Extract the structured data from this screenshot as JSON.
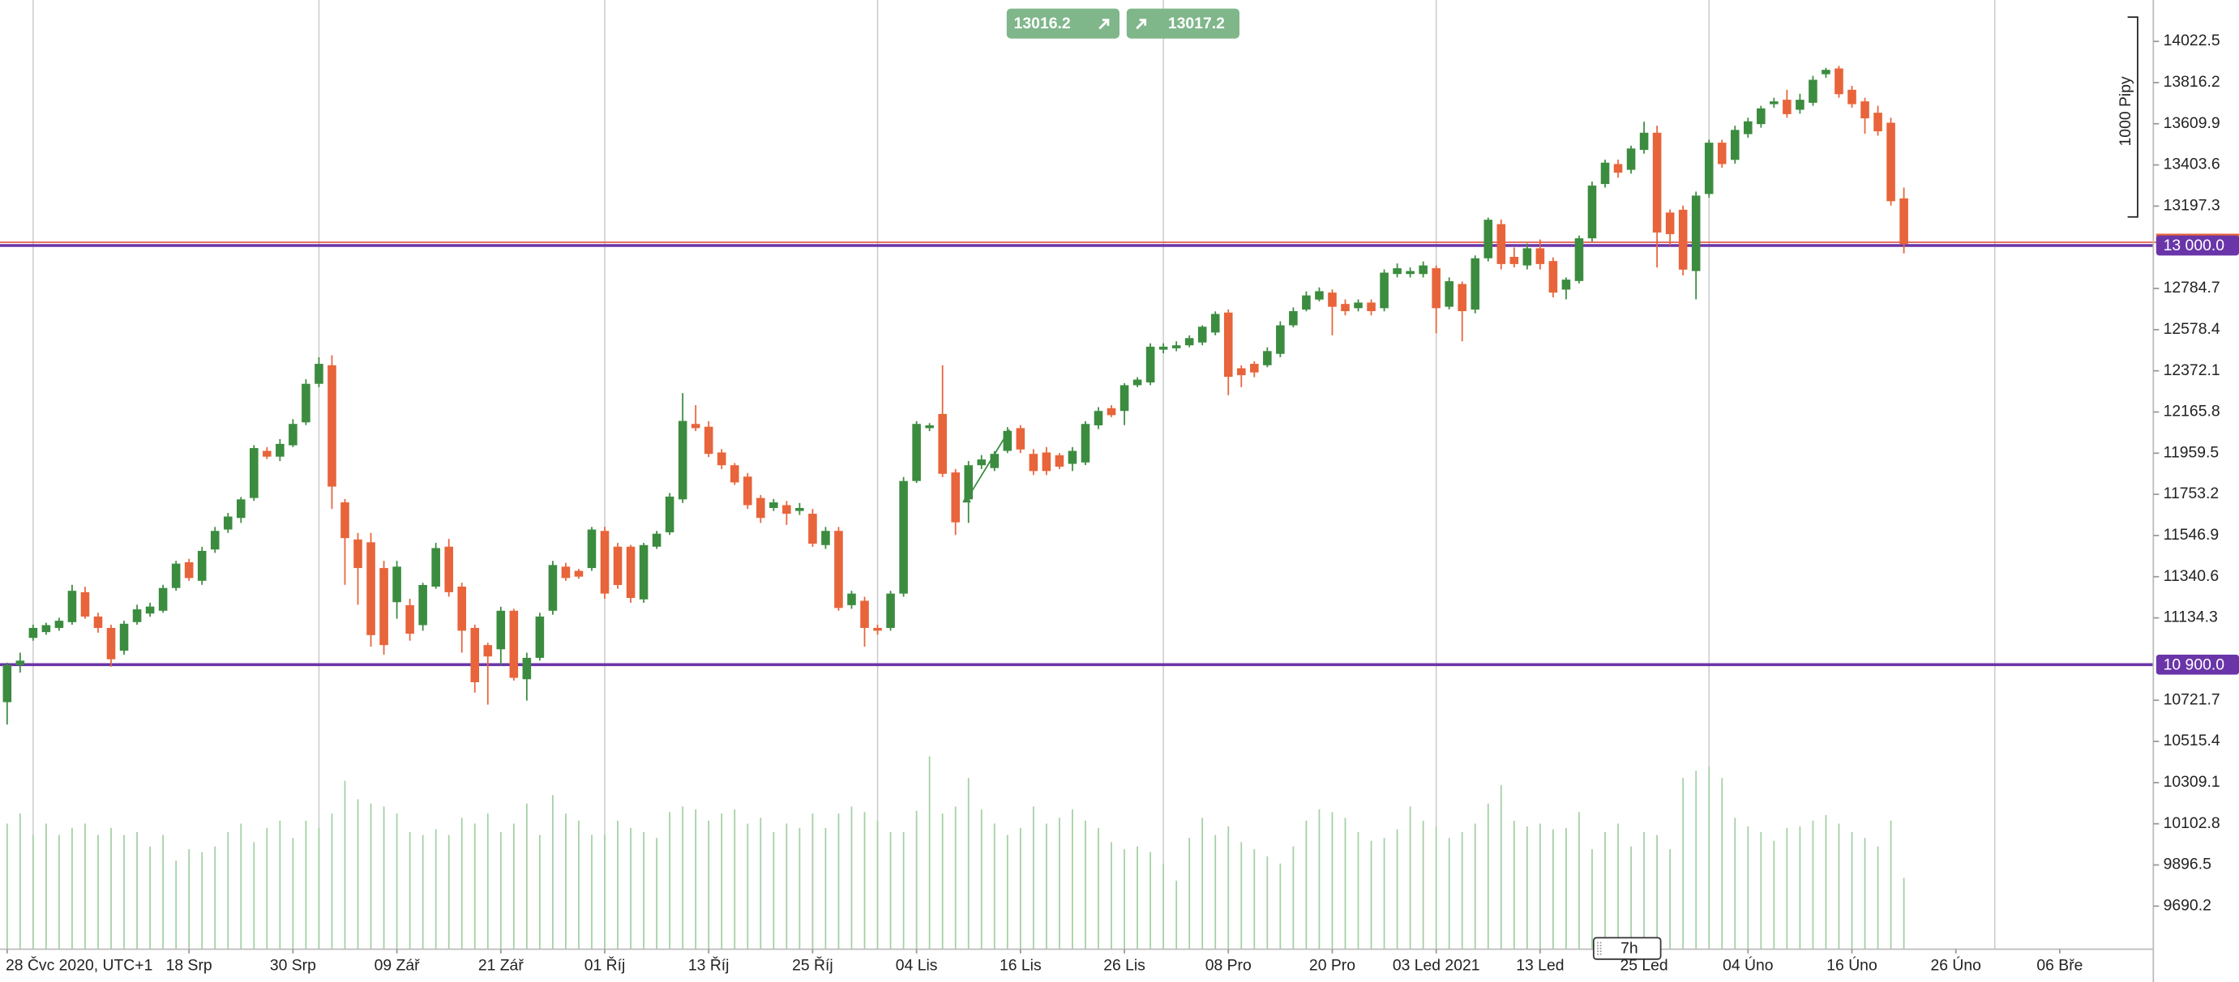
{
  "chart_data": {
    "type": "candlestick",
    "open": [
      10712,
      10898,
      11034,
      11063,
      11084,
      11113,
      11263,
      11141,
      11084,
      10970,
      11113,
      11156,
      11170,
      11284,
      11413,
      11320,
      11477,
      11577,
      11635,
      11735,
      11971,
      11942,
      11999,
      12114,
      12307,
      12400,
      11713,
      11527,
      11513,
      11384,
      11213,
      11198,
      11098,
      11291,
      11491,
      11291,
      11084,
      10998,
      10977,
      11170,
      10827,
      10934,
      11170,
      11391,
      11370,
      11384,
      11570,
      11491,
      11491,
      11227,
      11491,
      11563,
      11728,
      12106,
      12092,
      11963,
      11899,
      11842,
      11735,
      11685,
      11699,
      11670,
      11656,
      11499,
      11570,
      11198,
      11220,
      11084,
      11084,
      11256,
      11820,
      12085,
      12156,
      11863,
      11728,
      11899,
      11885,
      11971,
      12085,
      11956,
      11963,
      11949,
      11906,
      11913,
      12099,
      12185,
      12171,
      12300,
      12314,
      12478,
      12485,
      12500,
      12514,
      12564,
      12664,
      12385,
      12407,
      12400,
      12457,
      12600,
      12679,
      12729,
      12764,
      12707,
      12686,
      12714,
      12686,
      12857,
      12857,
      12857,
      12886,
      12693,
      12807,
      12679,
      12936,
      13107,
      12943,
      12900,
      12986,
      12922,
      12779,
      12822,
      13036,
      13308,
      13408,
      13379,
      13479,
      13565,
      13165,
      13179,
      12872,
      13258,
      13515,
      13429,
      13558,
      13608,
      13708,
      13730,
      13680,
      13715,
      13858,
      13887,
      13780,
      13722,
      13665,
      13615,
      13236
    ],
    "high": [
      10910,
      10960,
      11100,
      11110,
      11135,
      11300,
      11290,
      11160,
      11100,
      11120,
      11200,
      11210,
      11300,
      11420,
      11430,
      11490,
      11590,
      11660,
      11740,
      12000,
      11990,
      12030,
      12130,
      12330,
      12440,
      12450,
      11730,
      11560,
      11560,
      11420,
      11420,
      11230,
      11310,
      11510,
      11530,
      11310,
      11100,
      11010,
      11190,
      11180,
      10960,
      11160,
      11420,
      11410,
      11380,
      11590,
      11590,
      11510,
      11500,
      11510,
      11570,
      11760,
      12260,
      12200,
      12120,
      11980,
      11910,
      11860,
      11750,
      11730,
      11720,
      11710,
      11680,
      11590,
      11590,
      11270,
      11240,
      11100,
      11270,
      11840,
      12120,
      12110,
      12400,
      11880,
      11920,
      11950,
      11970,
      12090,
      12100,
      11980,
      11990,
      11960,
      11990,
      12120,
      12190,
      12200,
      12310,
      12340,
      12510,
      12510,
      12520,
      12550,
      12600,
      12670,
      12680,
      12400,
      12420,
      12490,
      12620,
      12690,
      12770,
      12790,
      12780,
      12730,
      12730,
      12730,
      12880,
      12910,
      12890,
      12920,
      12900,
      12840,
      12820,
      12950,
      13140,
      13130,
      12990,
      13010,
      13030,
      12940,
      12840,
      13050,
      13320,
      13430,
      13430,
      13500,
      13620,
      13600,
      13180,
      13200,
      13270,
      13530,
      13530,
      13600,
      13640,
      13700,
      13740,
      13780,
      13760,
      13850,
      13890,
      13900,
      13800,
      13740,
      13700,
      13640,
      13290
    ],
    "low": [
      10600,
      10860,
      11020,
      11050,
      11070,
      11100,
      11130,
      11060,
      10890,
      10950,
      11100,
      11140,
      11160,
      11270,
      11320,
      11300,
      11460,
      11560,
      11610,
      11720,
      11930,
      11920,
      11990,
      12100,
      12290,
      11680,
      11300,
      11200,
      10990,
      10950,
      11130,
      11020,
      11070,
      11280,
      11240,
      10960,
      10760,
      10700,
      10900,
      10820,
      10720,
      10920,
      11150,
      11320,
      11330,
      11370,
      11230,
      11280,
      11210,
      11210,
      11480,
      11550,
      11710,
      12070,
      11940,
      11880,
      11800,
      11680,
      11610,
      11670,
      11600,
      11650,
      11490,
      11480,
      11170,
      11180,
      10990,
      11050,
      11070,
      11240,
      11810,
      12070,
      11840,
      11550,
      11610,
      11880,
      11870,
      11960,
      11960,
      11850,
      11850,
      11880,
      11870,
      11900,
      12080,
      12140,
      12100,
      12290,
      12300,
      12460,
      12470,
      12490,
      12500,
      12550,
      12250,
      12290,
      12340,
      12390,
      12440,
      12590,
      12670,
      12720,
      12550,
      12650,
      12670,
      12650,
      12670,
      12840,
      12840,
      12840,
      12560,
      12680,
      12520,
      12660,
      12920,
      12880,
      12890,
      12880,
      12880,
      12740,
      12730,
      12810,
      13020,
      13290,
      13340,
      13360,
      13460,
      12890,
      13000,
      12850,
      12730,
      13240,
      13390,
      13410,
      13540,
      13590,
      13690,
      13640,
      13660,
      13700,
      13840,
      13740,
      13690,
      13560,
      13550,
      13200,
      12960
    ],
    "close": [
      10898,
      10920,
      11084,
      11098,
      11120,
      11270,
      11141,
      11084,
      10927,
      11105,
      11177,
      11191,
      11284,
      11406,
      11334,
      11470,
      11570,
      11642,
      11728,
      11985,
      11942,
      12006,
      12106,
      12307,
      12407,
      11792,
      11534,
      11384,
      11048,
      10998,
      11391,
      11055,
      11299,
      11484,
      11263,
      11070,
      10812,
      10941,
      11170,
      10834,
      10934,
      11141,
      11399,
      11334,
      11341,
      11577,
      11256,
      11299,
      11234,
      11499,
      11556,
      11742,
      12121,
      12085,
      11956,
      11899,
      11813,
      11699,
      11635,
      11713,
      11656,
      11685,
      11506,
      11570,
      11184,
      11256,
      11084,
      11070,
      11256,
      11820,
      12106,
      12099,
      11856,
      11613,
      11899,
      11928,
      11956,
      12071,
      11978,
      11870,
      11870,
      11892,
      11971,
      12106,
      12171,
      12150,
      12300,
      12328,
      12493,
      12493,
      12500,
      12536,
      12593,
      12657,
      12342,
      12350,
      12364,
      12471,
      12600,
      12671,
      12750,
      12771,
      12693,
      12671,
      12714,
      12671,
      12864,
      12886,
      12872,
      12900,
      12686,
      12821,
      12671,
      12936,
      13129,
      12907,
      12907,
      12986,
      12907,
      12764,
      12829,
      13036,
      13300,
      13415,
      13365,
      13486,
      13565,
      13065,
      13057,
      12879,
      13250,
      13515,
      13408,
      13579,
      13622,
      13687,
      13722,
      13658,
      13730,
      13830,
      13880,
      13758,
      13708,
      13637,
      13572,
      13222,
      13007
    ],
    "volume": [
      88,
      95,
      80,
      88,
      80,
      85,
      88,
      80,
      85,
      80,
      82,
      72,
      80,
      62,
      70,
      68,
      72,
      82,
      88,
      75,
      85,
      90,
      78,
      90,
      85,
      95,
      118,
      105,
      102,
      100,
      95,
      82,
      80,
      84,
      80,
      92,
      88,
      95,
      82,
      88,
      102,
      80,
      108,
      95,
      90,
      80,
      80,
      90,
      85,
      82,
      78,
      96,
      100,
      98,
      90,
      95,
      98,
      88,
      92,
      82,
      88,
      85,
      95,
      85,
      95,
      100,
      96,
      90,
      82,
      82,
      97,
      135,
      95,
      100,
      120,
      98,
      88,
      80,
      85,
      100,
      88,
      92,
      98,
      90,
      85,
      75,
      70,
      72,
      68,
      60,
      48,
      78,
      92,
      80,
      86,
      75,
      70,
      65,
      60,
      72,
      90,
      98,
      96,
      92,
      82,
      76,
      78,
      84,
      100,
      90,
      86,
      78,
      82,
      88,
      102,
      115,
      90,
      86,
      88,
      84,
      85,
      96,
      70,
      82,
      88,
      72,
      82,
      80,
      70,
      120,
      125,
      128,
      120,
      92,
      86,
      82,
      76,
      85,
      86,
      90,
      94,
      88,
      82,
      78,
      72,
      90,
      50
    ],
    "up_color": "#3b8c3f",
    "down_color": "#e8643a",
    "volume_color": "#a3d0a3",
    "xlim": [
      -0.55,
      165.2
    ],
    "ylim": [
      9474.5,
      14229.9
    ],
    "yticks": [
      9690.2,
      9896.5,
      10102.8,
      10309.1,
      10515.4,
      10721.7,
      11134.3,
      11340.6,
      11546.9,
      11753.2,
      11959.5,
      12165.8,
      12372.1,
      12578.4,
      12784.7,
      13197.3,
      13403.6,
      13609.9,
      13816.2,
      14022.5
    ],
    "xticks": [
      {
        "value": 0,
        "label": "28 Čvc 2020, UTC+1"
      },
      {
        "value": 14,
        "label": "18 Srp"
      },
      {
        "value": 22,
        "label": "30 Srp"
      },
      {
        "value": 30,
        "label": "09 Zář"
      },
      {
        "value": 38,
        "label": "21 Zář"
      },
      {
        "value": 46,
        "label": "01 Říj"
      },
      {
        "value": 54,
        "label": "13 Říj"
      },
      {
        "value": 62,
        "label": "25 Říj"
      },
      {
        "value": 70,
        "label": "04 Lis"
      },
      {
        "value": 78,
        "label": "16 Lis"
      },
      {
        "value": 86,
        "label": "26 Lis"
      },
      {
        "value": 94,
        "label": "08 Pro"
      },
      {
        "value": 102,
        "label": "20 Pro"
      },
      {
        "value": 110,
        "label": "03 Led 2021"
      },
      {
        "value": 118,
        "label": "13 Led"
      },
      {
        "value": 126,
        "label": "25 Led"
      },
      {
        "value": 134,
        "label": "04 Úno"
      },
      {
        "value": 142,
        "label": "16 Úno"
      },
      {
        "value": 150,
        "label": "26 Úno"
      },
      {
        "value": 158,
        "label": "06 Bře"
      }
    ],
    "xgrid": [
      2,
      24,
      46,
      67,
      89,
      110,
      131,
      153
    ],
    "levels": [
      {
        "value": 13000,
        "label": "13 000.0",
        "color": "#6a35a8"
      },
      {
        "value": 10900,
        "label": "10 900.0",
        "color": "#6a35a8"
      }
    ],
    "quotes": {
      "sell": 13016.2,
      "buy": 13017.2,
      "color": "#7fb68a",
      "line_color": "#e0604f"
    },
    "range_label": "1000 Pipy",
    "timer": "7h"
  }
}
